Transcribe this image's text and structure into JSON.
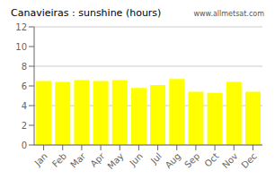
{
  "chart_data": {
    "type": "bar",
    "title": "Canavieiras : sunshine (hours)",
    "categories": [
      "Jan",
      "Feb",
      "Mar",
      "Apr",
      "May",
      "Jun",
      "Jul",
      "Aug",
      "Sep",
      "Oct",
      "Nov",
      "Dec"
    ],
    "values": [
      6.5,
      6.4,
      6.6,
      6.5,
      6.6,
      5.8,
      6.1,
      6.7,
      5.4,
      5.3,
      6.4,
      5.4
    ],
    "color": "#ffff00",
    "ylim": [
      0,
      12
    ],
    "yticks": [
      0,
      2,
      4,
      6,
      8,
      10,
      12
    ],
    "grid": true,
    "annotations": [
      "www.allmetsat.com"
    ]
  }
}
